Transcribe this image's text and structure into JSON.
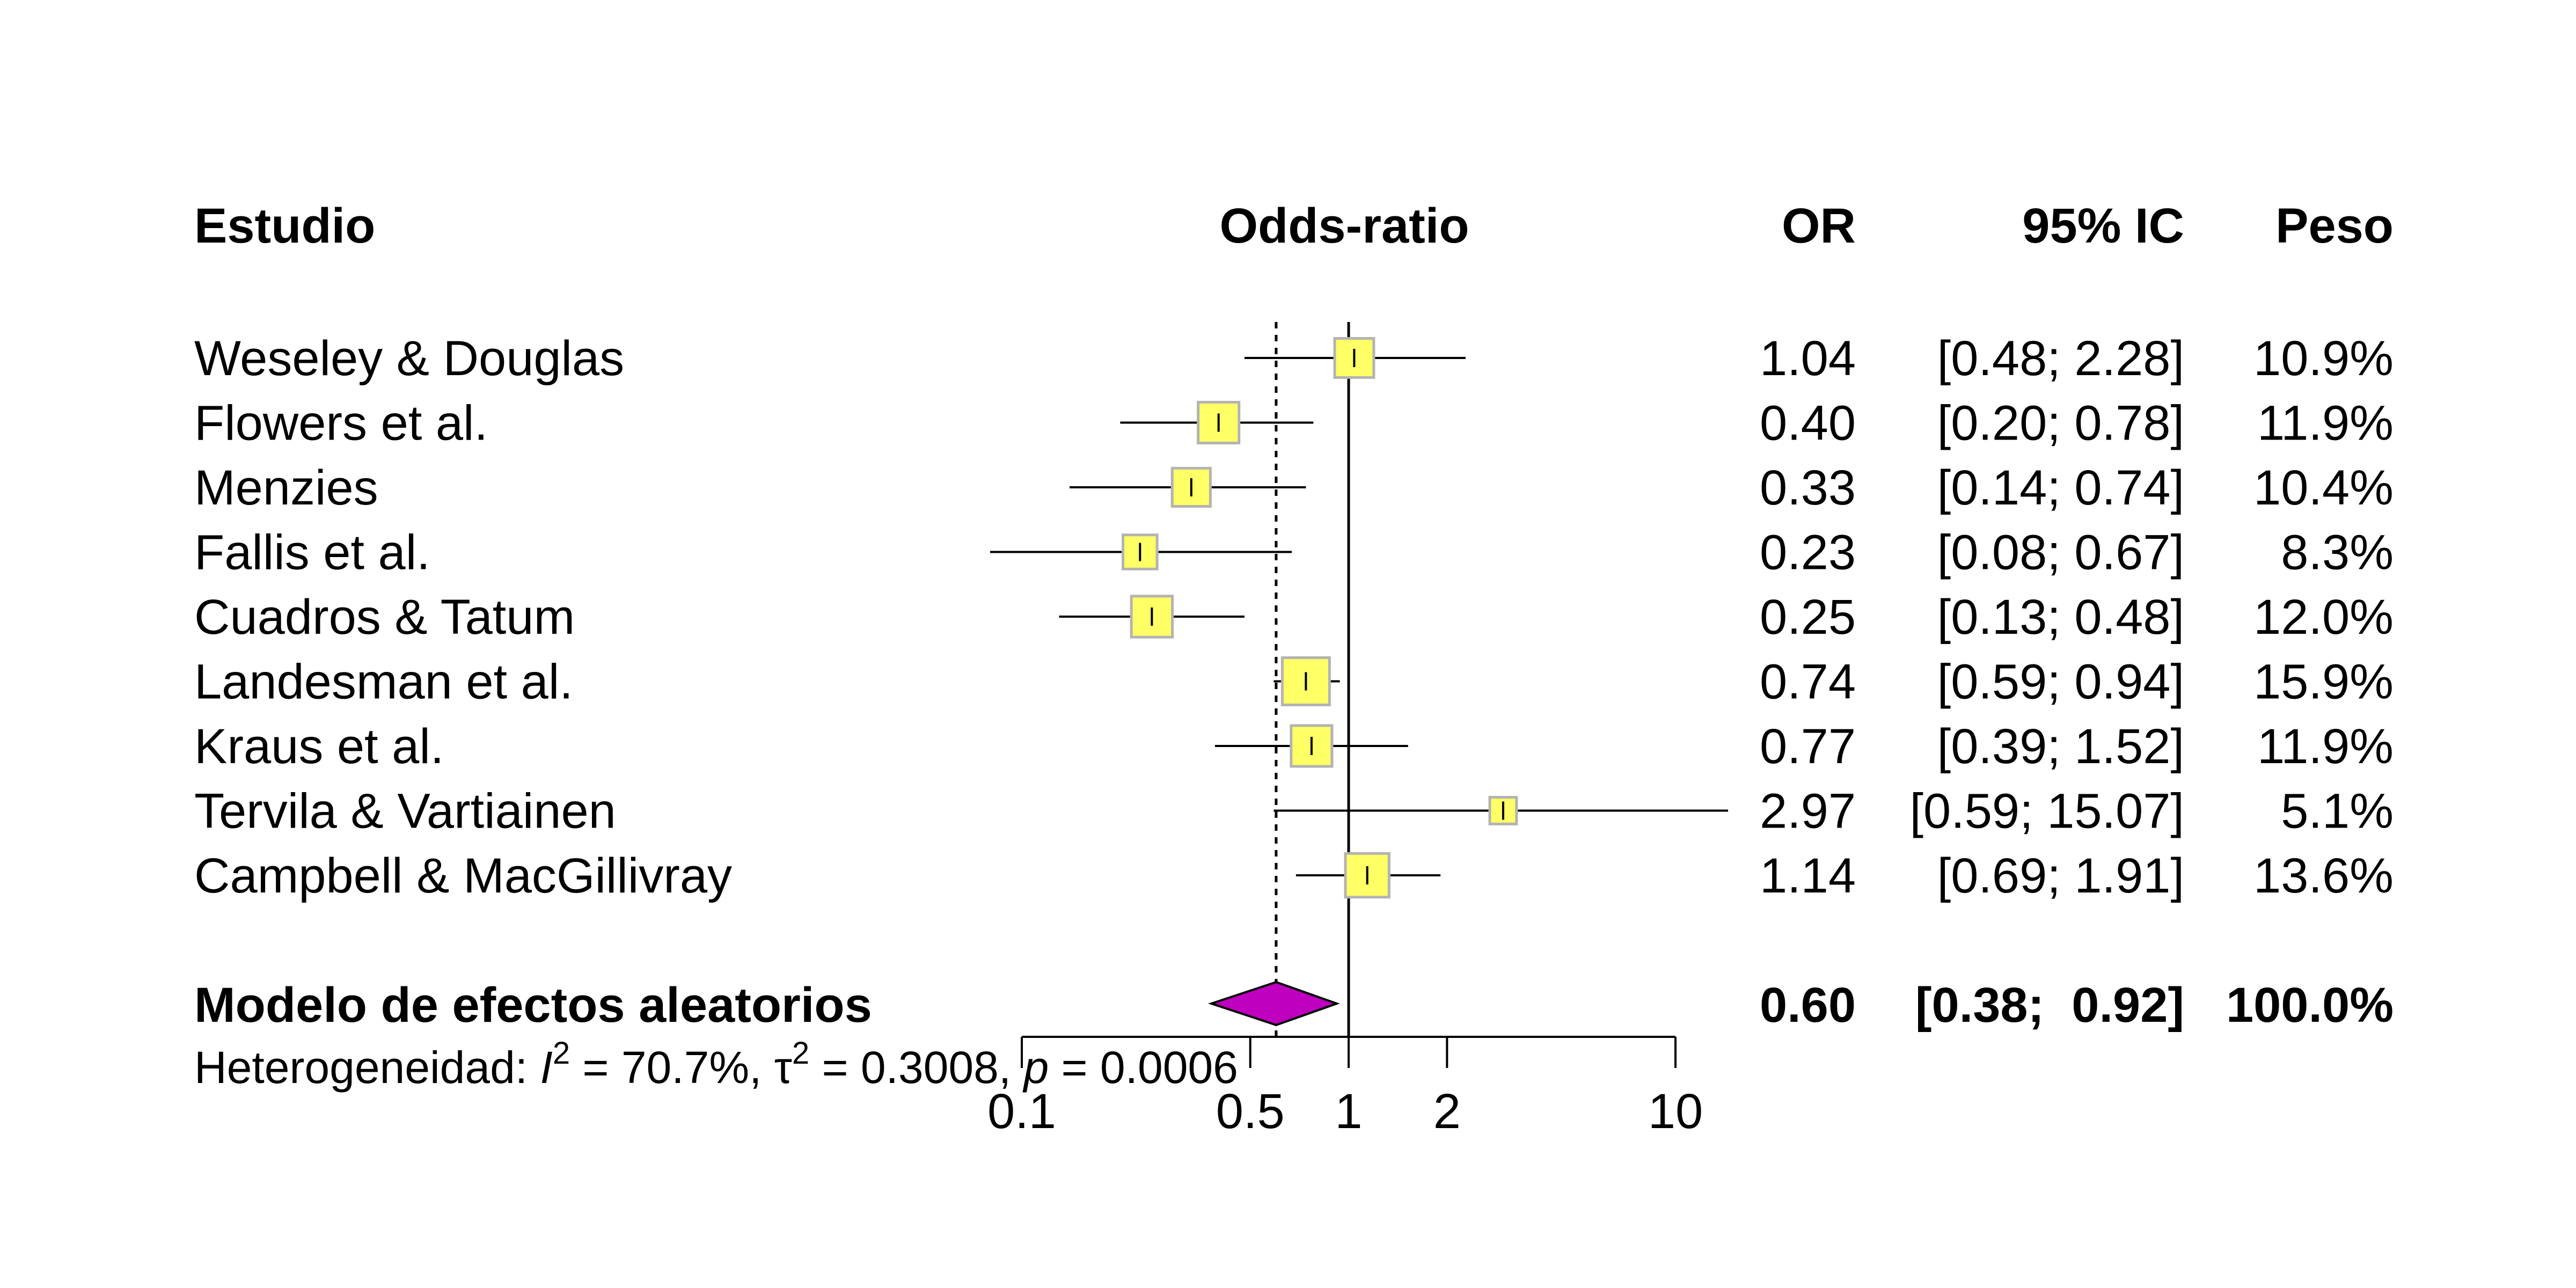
{
  "chart_data": {
    "type": "forest",
    "scale": "log",
    "xlim": [
      0.1,
      10
    ],
    "null_value": 1,
    "summary_line": 0.6,
    "headers": {
      "study": "Estudio",
      "plot": "Odds-ratio",
      "effect": "OR",
      "ci": "95% IC",
      "weight": "Peso"
    },
    "ticks": [
      {
        "value": 0.1,
        "label": "0.1"
      },
      {
        "value": 0.5,
        "label": "0.5"
      },
      {
        "value": 1,
        "label": "1"
      },
      {
        "value": 2,
        "label": "2"
      },
      {
        "value": 10,
        "label": "10"
      }
    ],
    "studies": [
      {
        "name": "Weseley & Douglas",
        "or": 1.04,
        "lower": 0.48,
        "upper": 2.28,
        "weight": 10.9,
        "or_text": "1.04",
        "ci_text": "[0.48;  2.28]",
        "weight_text": "10.9%"
      },
      {
        "name": "Flowers et al.",
        "or": 0.4,
        "lower": 0.2,
        "upper": 0.78,
        "weight": 11.9,
        "or_text": "0.40",
        "ci_text": "[0.20;  0.78]",
        "weight_text": "11.9%"
      },
      {
        "name": "Menzies",
        "or": 0.33,
        "lower": 0.14,
        "upper": 0.74,
        "weight": 10.4,
        "or_text": "0.33",
        "ci_text": "[0.14;  0.74]",
        "weight_text": "10.4%"
      },
      {
        "name": "Fallis et al.",
        "or": 0.23,
        "lower": 0.08,
        "upper": 0.67,
        "weight": 8.3,
        "or_text": "0.23",
        "ci_text": "[0.08;  0.67]",
        "weight_text": "8.3%"
      },
      {
        "name": "Cuadros & Tatum",
        "or": 0.25,
        "lower": 0.13,
        "upper": 0.48,
        "weight": 12.0,
        "or_text": "0.25",
        "ci_text": "[0.13;  0.48]",
        "weight_text": "12.0%"
      },
      {
        "name": "Landesman et al.",
        "or": 0.74,
        "lower": 0.59,
        "upper": 0.94,
        "weight": 15.9,
        "or_text": "0.74",
        "ci_text": "[0.59;  0.94]",
        "weight_text": "15.9%"
      },
      {
        "name": "Kraus et al.",
        "or": 0.77,
        "lower": 0.39,
        "upper": 1.52,
        "weight": 11.9,
        "or_text": "0.77",
        "ci_text": "[0.39;  1.52]",
        "weight_text": "11.9%"
      },
      {
        "name": "Tervila & Vartiainen",
        "or": 2.97,
        "lower": 0.59,
        "upper": 15.07,
        "weight": 5.1,
        "or_text": "2.97",
        "ci_text": "[0.59; 15.07]",
        "weight_text": "5.1%"
      },
      {
        "name": "Campbell & MacGillivray",
        "or": 1.14,
        "lower": 0.69,
        "upper": 1.91,
        "weight": 13.6,
        "or_text": "1.14",
        "ci_text": "[0.69;  1.91]",
        "weight_text": "13.6%"
      }
    ],
    "summary": {
      "name": "Modelo de efectos aleatorios",
      "or": 0.6,
      "lower": 0.38,
      "upper": 0.92,
      "or_text": "0.60",
      "ci_text": "[0.38;  0.92]",
      "weight_text": "100.0%"
    },
    "heterogeneity": {
      "prefix": "Heterogeneidad: ",
      "i2_symbol": "I",
      "i2_value": " = 70.7%, ",
      "tau_symbol": "τ",
      "tau_value": " = 0.3008, ",
      "p_symbol": "p",
      "p_value": " = 0.0006"
    },
    "colors": {
      "box_fill": "#ffff66",
      "box_stroke": "#b3b3b3",
      "diamond_fill": "#bf00bf",
      "line": "#000000"
    }
  }
}
